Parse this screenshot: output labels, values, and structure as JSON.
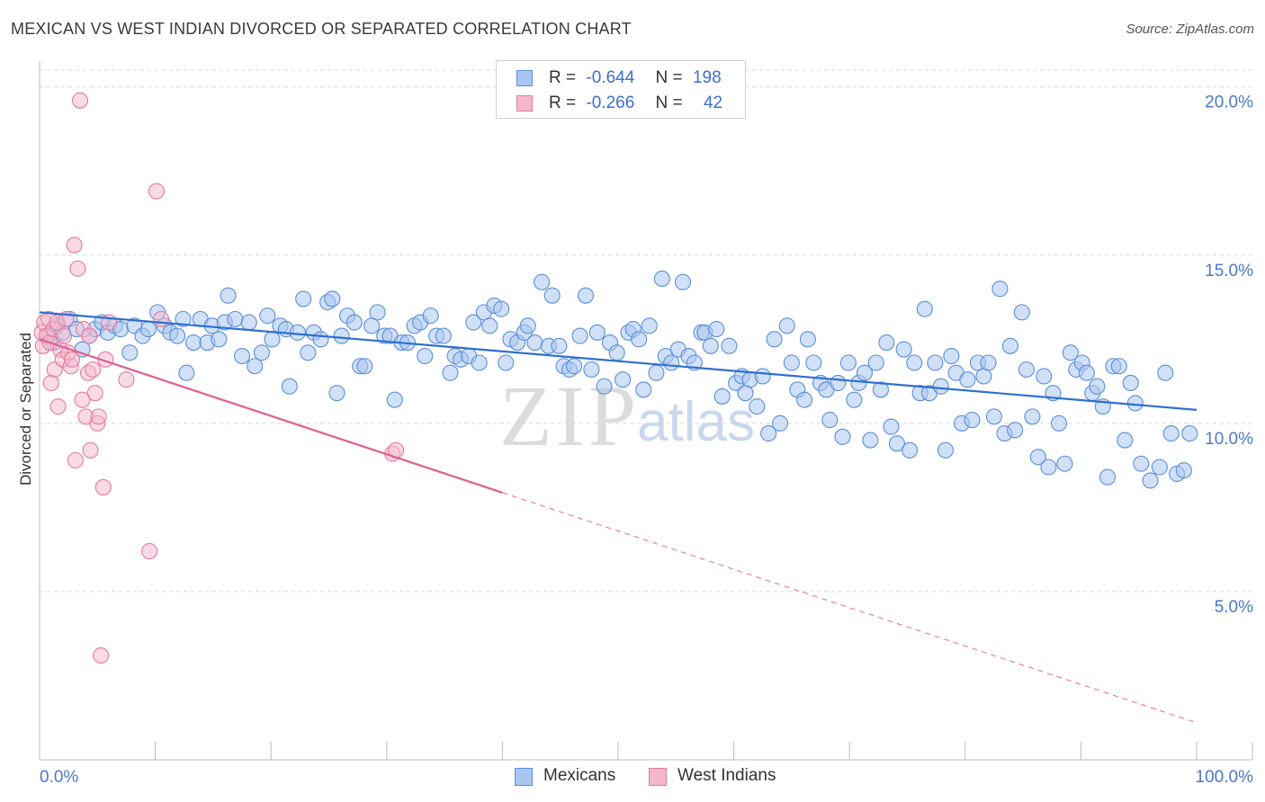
{
  "title": "MEXICAN VS WEST INDIAN DIVORCED OR SEPARATED CORRELATION CHART",
  "source": "Source: ZipAtlas.com",
  "watermark": {
    "zip": "ZIP",
    "atlas": "atlas"
  },
  "legend": {
    "rows": [
      {
        "r_label": "R =",
        "r_value": "-0.644",
        "n_label": "N =",
        "n_value": "198"
      },
      {
        "r_label": "R =",
        "r_value": "-0.266",
        "n_label": "N =",
        "n_value": "42"
      }
    ]
  },
  "bottom_legend": {
    "mexicans": "Mexicans",
    "west_indians": "West Indians"
  },
  "colors": {
    "mexicans_fill": "#aac6f0",
    "mexicans_stroke": "#5b8fd8",
    "mexicans_line": "#2f6fd0",
    "west_fill": "#f5b8ca",
    "west_stroke": "#e27aa0",
    "west_line": "#e06090",
    "grid": "#d8d8d8",
    "tick_text": "#4a79c8"
  },
  "chart_data": {
    "type": "scatter",
    "title": "MEXICAN VS WEST INDIAN DIVORCED OR SEPARATED CORRELATION CHART",
    "xlabel": "",
    "ylabel": "Divorced or Separated",
    "xlim": [
      0,
      100
    ],
    "ylim": [
      0,
      20.5
    ],
    "y_ticks": [
      {
        "value": 5,
        "label": "5.0%"
      },
      {
        "value": 10,
        "label": "10.0%"
      },
      {
        "value": 15,
        "label": "15.0%"
      },
      {
        "value": 20,
        "label": "20.0%"
      }
    ],
    "x_tick_labels": [
      {
        "value": 0,
        "label": "0.0%"
      },
      {
        "value": 100,
        "label": "100.0%"
      }
    ],
    "x_minor_ticks": [
      10,
      20,
      30,
      40,
      50,
      60,
      70,
      80,
      90
    ],
    "series": [
      {
        "name": "Mexicans",
        "r": -0.644,
        "n": 198,
        "trend": {
          "x0": 0,
          "y0": 13.3,
          "x1": 100,
          "y1": 10.4,
          "solid_until": 100
        },
        "points": [
          [
            0.8,
            12.6
          ],
          [
            1.2,
            12.4
          ],
          [
            1.5,
            12.9
          ],
          [
            2.0,
            12.7
          ],
          [
            2.6,
            13.1
          ],
          [
            3.2,
            12.8
          ],
          [
            3.7,
            12.2
          ],
          [
            4.3,
            12.6
          ],
          [
            4.8,
            12.8
          ],
          [
            5.4,
            13.0
          ],
          [
            5.9,
            12.7
          ],
          [
            6.5,
            12.9
          ],
          [
            7.0,
            12.8
          ],
          [
            7.8,
            12.1
          ],
          [
            8.2,
            12.9
          ],
          [
            8.9,
            12.6
          ],
          [
            9.4,
            12.8
          ],
          [
            10.2,
            13.3
          ],
          [
            10.8,
            12.9
          ],
          [
            11.3,
            12.7
          ],
          [
            11.9,
            12.6
          ],
          [
            12.4,
            13.1
          ],
          [
            12.7,
            11.5
          ],
          [
            13.3,
            12.4
          ],
          [
            13.9,
            13.1
          ],
          [
            14.5,
            12.4
          ],
          [
            14.9,
            12.9
          ],
          [
            15.5,
            12.5
          ],
          [
            16.0,
            13.0
          ],
          [
            16.3,
            13.8
          ],
          [
            16.9,
            13.1
          ],
          [
            17.5,
            12.0
          ],
          [
            18.1,
            13.0
          ],
          [
            18.6,
            11.7
          ],
          [
            19.2,
            12.1
          ],
          [
            19.7,
            13.2
          ],
          [
            20.1,
            12.5
          ],
          [
            20.8,
            12.9
          ],
          [
            21.3,
            12.8
          ],
          [
            21.6,
            11.1
          ],
          [
            22.3,
            12.7
          ],
          [
            22.8,
            13.7
          ],
          [
            23.2,
            12.1
          ],
          [
            23.7,
            12.7
          ],
          [
            24.3,
            12.5
          ],
          [
            24.9,
            13.6
          ],
          [
            25.3,
            13.7
          ],
          [
            25.7,
            10.9
          ],
          [
            26.1,
            12.6
          ],
          [
            26.6,
            13.2
          ],
          [
            27.2,
            13.0
          ],
          [
            27.7,
            11.7
          ],
          [
            28.1,
            11.7
          ],
          [
            28.7,
            12.9
          ],
          [
            29.2,
            13.3
          ],
          [
            29.8,
            12.6
          ],
          [
            30.3,
            12.6
          ],
          [
            30.7,
            10.7
          ],
          [
            31.3,
            12.4
          ],
          [
            31.8,
            12.4
          ],
          [
            32.4,
            12.9
          ],
          [
            32.9,
            13.0
          ],
          [
            33.3,
            12.0
          ],
          [
            33.8,
            13.2
          ],
          [
            34.3,
            12.6
          ],
          [
            34.9,
            12.6
          ],
          [
            35.5,
            11.5
          ],
          [
            35.9,
            12.0
          ],
          [
            36.4,
            11.9
          ],
          [
            37.1,
            12.0
          ],
          [
            37.5,
            13.0
          ],
          [
            38.0,
            11.8
          ],
          [
            38.4,
            13.3
          ],
          [
            38.9,
            12.9
          ],
          [
            39.3,
            13.5
          ],
          [
            39.9,
            13.4
          ],
          [
            40.3,
            11.8
          ],
          [
            40.7,
            12.5
          ],
          [
            41.3,
            12.4
          ],
          [
            41.9,
            12.7
          ],
          [
            42.2,
            12.9
          ],
          [
            42.8,
            12.4
          ],
          [
            43.4,
            14.2
          ],
          [
            44.0,
            12.3
          ],
          [
            44.3,
            13.8
          ],
          [
            44.9,
            12.3
          ],
          [
            45.3,
            11.7
          ],
          [
            45.8,
            11.6
          ],
          [
            46.2,
            11.7
          ],
          [
            46.7,
            12.6
          ],
          [
            47.2,
            13.8
          ],
          [
            47.7,
            11.6
          ],
          [
            48.2,
            12.7
          ],
          [
            48.8,
            11.1
          ],
          [
            49.3,
            12.4
          ],
          [
            49.9,
            12.1
          ],
          [
            50.4,
            11.3
          ],
          [
            50.9,
            12.7
          ],
          [
            51.3,
            12.8
          ],
          [
            51.8,
            12.5
          ],
          [
            52.2,
            11.0
          ],
          [
            52.7,
            12.9
          ],
          [
            53.3,
            11.5
          ],
          [
            53.8,
            14.3
          ],
          [
            54.1,
            12.0
          ],
          [
            54.6,
            11.8
          ],
          [
            55.2,
            12.2
          ],
          [
            55.6,
            14.2
          ],
          [
            56.1,
            12.0
          ],
          [
            56.6,
            11.8
          ],
          [
            57.2,
            12.7
          ],
          [
            57.5,
            12.7
          ],
          [
            58.0,
            12.3
          ],
          [
            58.5,
            12.8
          ],
          [
            59.0,
            10.8
          ],
          [
            59.6,
            12.3
          ],
          [
            60.2,
            11.2
          ],
          [
            60.7,
            11.4
          ],
          [
            61.0,
            10.9
          ],
          [
            61.4,
            11.3
          ],
          [
            62.0,
            10.5
          ],
          [
            62.5,
            11.4
          ],
          [
            63.0,
            9.7
          ],
          [
            63.5,
            12.5
          ],
          [
            64.0,
            10.0
          ],
          [
            64.6,
            12.9
          ],
          [
            65.0,
            11.8
          ],
          [
            65.5,
            11.0
          ],
          [
            66.1,
            10.7
          ],
          [
            66.4,
            12.5
          ],
          [
            66.9,
            11.8
          ],
          [
            67.5,
            11.2
          ],
          [
            68.0,
            11.0
          ],
          [
            68.3,
            10.1
          ],
          [
            69.0,
            11.2
          ],
          [
            69.4,
            9.6
          ],
          [
            69.9,
            11.8
          ],
          [
            70.4,
            10.7
          ],
          [
            70.8,
            11.2
          ],
          [
            71.3,
            11.5
          ],
          [
            71.8,
            9.5
          ],
          [
            72.3,
            11.8
          ],
          [
            72.7,
            11.0
          ],
          [
            73.2,
            12.4
          ],
          [
            73.6,
            9.9
          ],
          [
            74.1,
            9.4
          ],
          [
            74.7,
            12.2
          ],
          [
            75.2,
            9.2
          ],
          [
            75.6,
            11.8
          ],
          [
            76.1,
            10.9
          ],
          [
            76.5,
            13.4
          ],
          [
            76.9,
            10.9
          ],
          [
            77.4,
            11.8
          ],
          [
            77.9,
            11.1
          ],
          [
            78.3,
            9.2
          ],
          [
            78.8,
            12.0
          ],
          [
            79.2,
            11.5
          ],
          [
            79.7,
            10.0
          ],
          [
            80.2,
            11.3
          ],
          [
            80.6,
            10.1
          ],
          [
            81.1,
            11.8
          ],
          [
            81.6,
            11.4
          ],
          [
            82.0,
            11.8
          ],
          [
            82.5,
            10.2
          ],
          [
            83.0,
            14.0
          ],
          [
            83.4,
            9.7
          ],
          [
            83.9,
            12.3
          ],
          [
            84.3,
            9.8
          ],
          [
            84.9,
            13.3
          ],
          [
            85.3,
            11.6
          ],
          [
            85.8,
            10.2
          ],
          [
            86.3,
            9.0
          ],
          [
            86.8,
            11.4
          ],
          [
            87.2,
            8.7
          ],
          [
            87.6,
            10.9
          ],
          [
            88.1,
            10.0
          ],
          [
            88.6,
            8.8
          ],
          [
            89.1,
            12.1
          ],
          [
            89.6,
            11.6
          ],
          [
            90.1,
            11.8
          ],
          [
            90.5,
            11.5
          ],
          [
            91.0,
            10.9
          ],
          [
            91.4,
            11.1
          ],
          [
            91.9,
            10.5
          ],
          [
            92.3,
            8.4
          ],
          [
            92.8,
            11.7
          ],
          [
            93.3,
            11.7
          ],
          [
            93.8,
            9.5
          ],
          [
            94.3,
            11.2
          ],
          [
            94.7,
            10.6
          ],
          [
            95.2,
            8.8
          ],
          [
            96.0,
            8.3
          ],
          [
            96.8,
            8.7
          ],
          [
            97.3,
            11.5
          ],
          [
            97.8,
            9.7
          ],
          [
            98.3,
            8.5
          ],
          [
            98.9,
            8.6
          ],
          [
            99.4,
            9.7
          ]
        ]
      },
      {
        "name": "West Indians",
        "r": -0.266,
        "n": 42,
        "trend": {
          "x0": 0,
          "y0": 12.5,
          "x1": 100,
          "y1": 1.1,
          "solid_until": 40
        },
        "points": [
          [
            0.2,
            12.7
          ],
          [
            0.3,
            12.3
          ],
          [
            0.4,
            13.0
          ],
          [
            0.6,
            12.6
          ],
          [
            0.8,
            13.1
          ],
          [
            0.9,
            12.4
          ],
          [
            1.0,
            11.2
          ],
          [
            1.2,
            12.8
          ],
          [
            1.3,
            11.6
          ],
          [
            1.5,
            13.0
          ],
          [
            1.6,
            10.5
          ],
          [
            1.8,
            12.2
          ],
          [
            2.0,
            11.9
          ],
          [
            2.1,
            12.6
          ],
          [
            2.3,
            13.1
          ],
          [
            2.5,
            12.1
          ],
          [
            2.7,
            11.7
          ],
          [
            2.8,
            11.9
          ],
          [
            3.0,
            15.3
          ],
          [
            3.1,
            8.9
          ],
          [
            3.3,
            14.6
          ],
          [
            3.5,
            19.6
          ],
          [
            3.7,
            10.7
          ],
          [
            3.8,
            12.8
          ],
          [
            4.0,
            10.2
          ],
          [
            4.2,
            11.5
          ],
          [
            4.3,
            12.6
          ],
          [
            4.4,
            9.2
          ],
          [
            4.6,
            11.6
          ],
          [
            4.8,
            10.9
          ],
          [
            5.0,
            10.0
          ],
          [
            5.1,
            10.2
          ],
          [
            5.3,
            3.1
          ],
          [
            5.5,
            8.1
          ],
          [
            5.7,
            11.9
          ],
          [
            6.0,
            13.0
          ],
          [
            7.5,
            11.3
          ],
          [
            9.5,
            6.2
          ],
          [
            10.1,
            16.9
          ],
          [
            10.5,
            13.1
          ],
          [
            30.5,
            9.1
          ],
          [
            30.8,
            9.2
          ]
        ]
      }
    ]
  }
}
